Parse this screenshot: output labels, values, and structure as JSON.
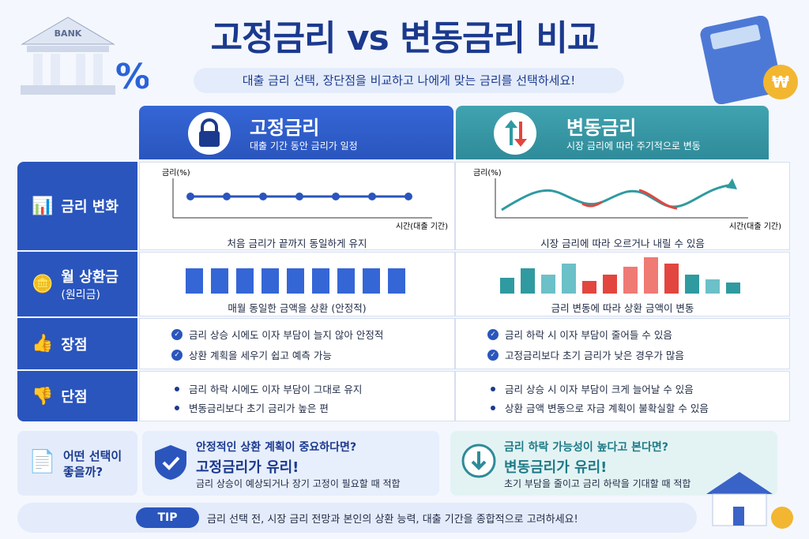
{
  "header": {
    "title": "고정금리 vs 변동금리 비교",
    "subtitle": "대출 금리 선택, 장단점을 비교하고 나에게 맞는 금리를 선택하세요!",
    "bank_label": "BANK",
    "percent_sign": "%",
    "won_sign": "₩"
  },
  "columns": {
    "fixed": {
      "title": "고정금리",
      "subtitle": "대출 기간 동안 금리가 일정"
    },
    "variable": {
      "title": "변동금리",
      "subtitle": "시장 금리에 따라 주기적으로 변동"
    }
  },
  "rows": {
    "rate": {
      "label": "금리 변화",
      "y_label": "금리(%)",
      "x_label": "시간(대출 기간)",
      "fixed_caption": "처음 금리가 끝까지 동일하게 유지",
      "variable_caption": "시장 금리에 따라 오르거나 내릴 수 있음"
    },
    "payment": {
      "label": "월 상환금",
      "sublabel": "(원리금)",
      "fixed_caption": "매월 동일한 금액을 상환 (안정적)",
      "variable_caption": "금리 변동에 따라 상환 금액이 변동"
    },
    "pros": {
      "label": "장점",
      "fixed": [
        "금리 상승 시에도 이자 부담이 늘지 않아 안정적",
        "상환 계획을 세우기 쉽고 예측 가능"
      ],
      "variable": [
        "금리 하락 시 이자 부담이 줄어들 수 있음",
        "고정금리보다 초기 금리가 낮은 경우가 많음"
      ]
    },
    "cons": {
      "label": "단점",
      "fixed": [
        "금리 하락 시에도 이자 부담이 그대로 유지",
        "변동금리보다 초기 금리가 높은 편"
      ],
      "variable": [
        "금리 상승 시 이자 부담이 크게 늘어날 수 있음",
        "상환 금액 변동으로 자금 계획이 불확실할 수 있음"
      ]
    }
  },
  "choice": {
    "label": [
      "어떤 선택이",
      "좋을까?"
    ],
    "recommendations": [
      {
        "question": "안정적인 상환 계획이 중요하다면?",
        "answer": "고정금리가 유리!",
        "detail": "금리 상승이 예상되거나 장기 고정이 필요할 때 적합"
      },
      {
        "question": "금리 하락 가능성이 높다고 본다면?",
        "answer": "변동금리가 유리!",
        "detail": "초기 부담을 줄이고 금리 하락을 기대할 때 적합"
      }
    ]
  },
  "tip": {
    "badge": "TIP",
    "text": "금리 선택 전, 시장 금리 전망과 본인의 상환 능력, 대출 기간을 종합적으로 고려하세요!"
  }
}
